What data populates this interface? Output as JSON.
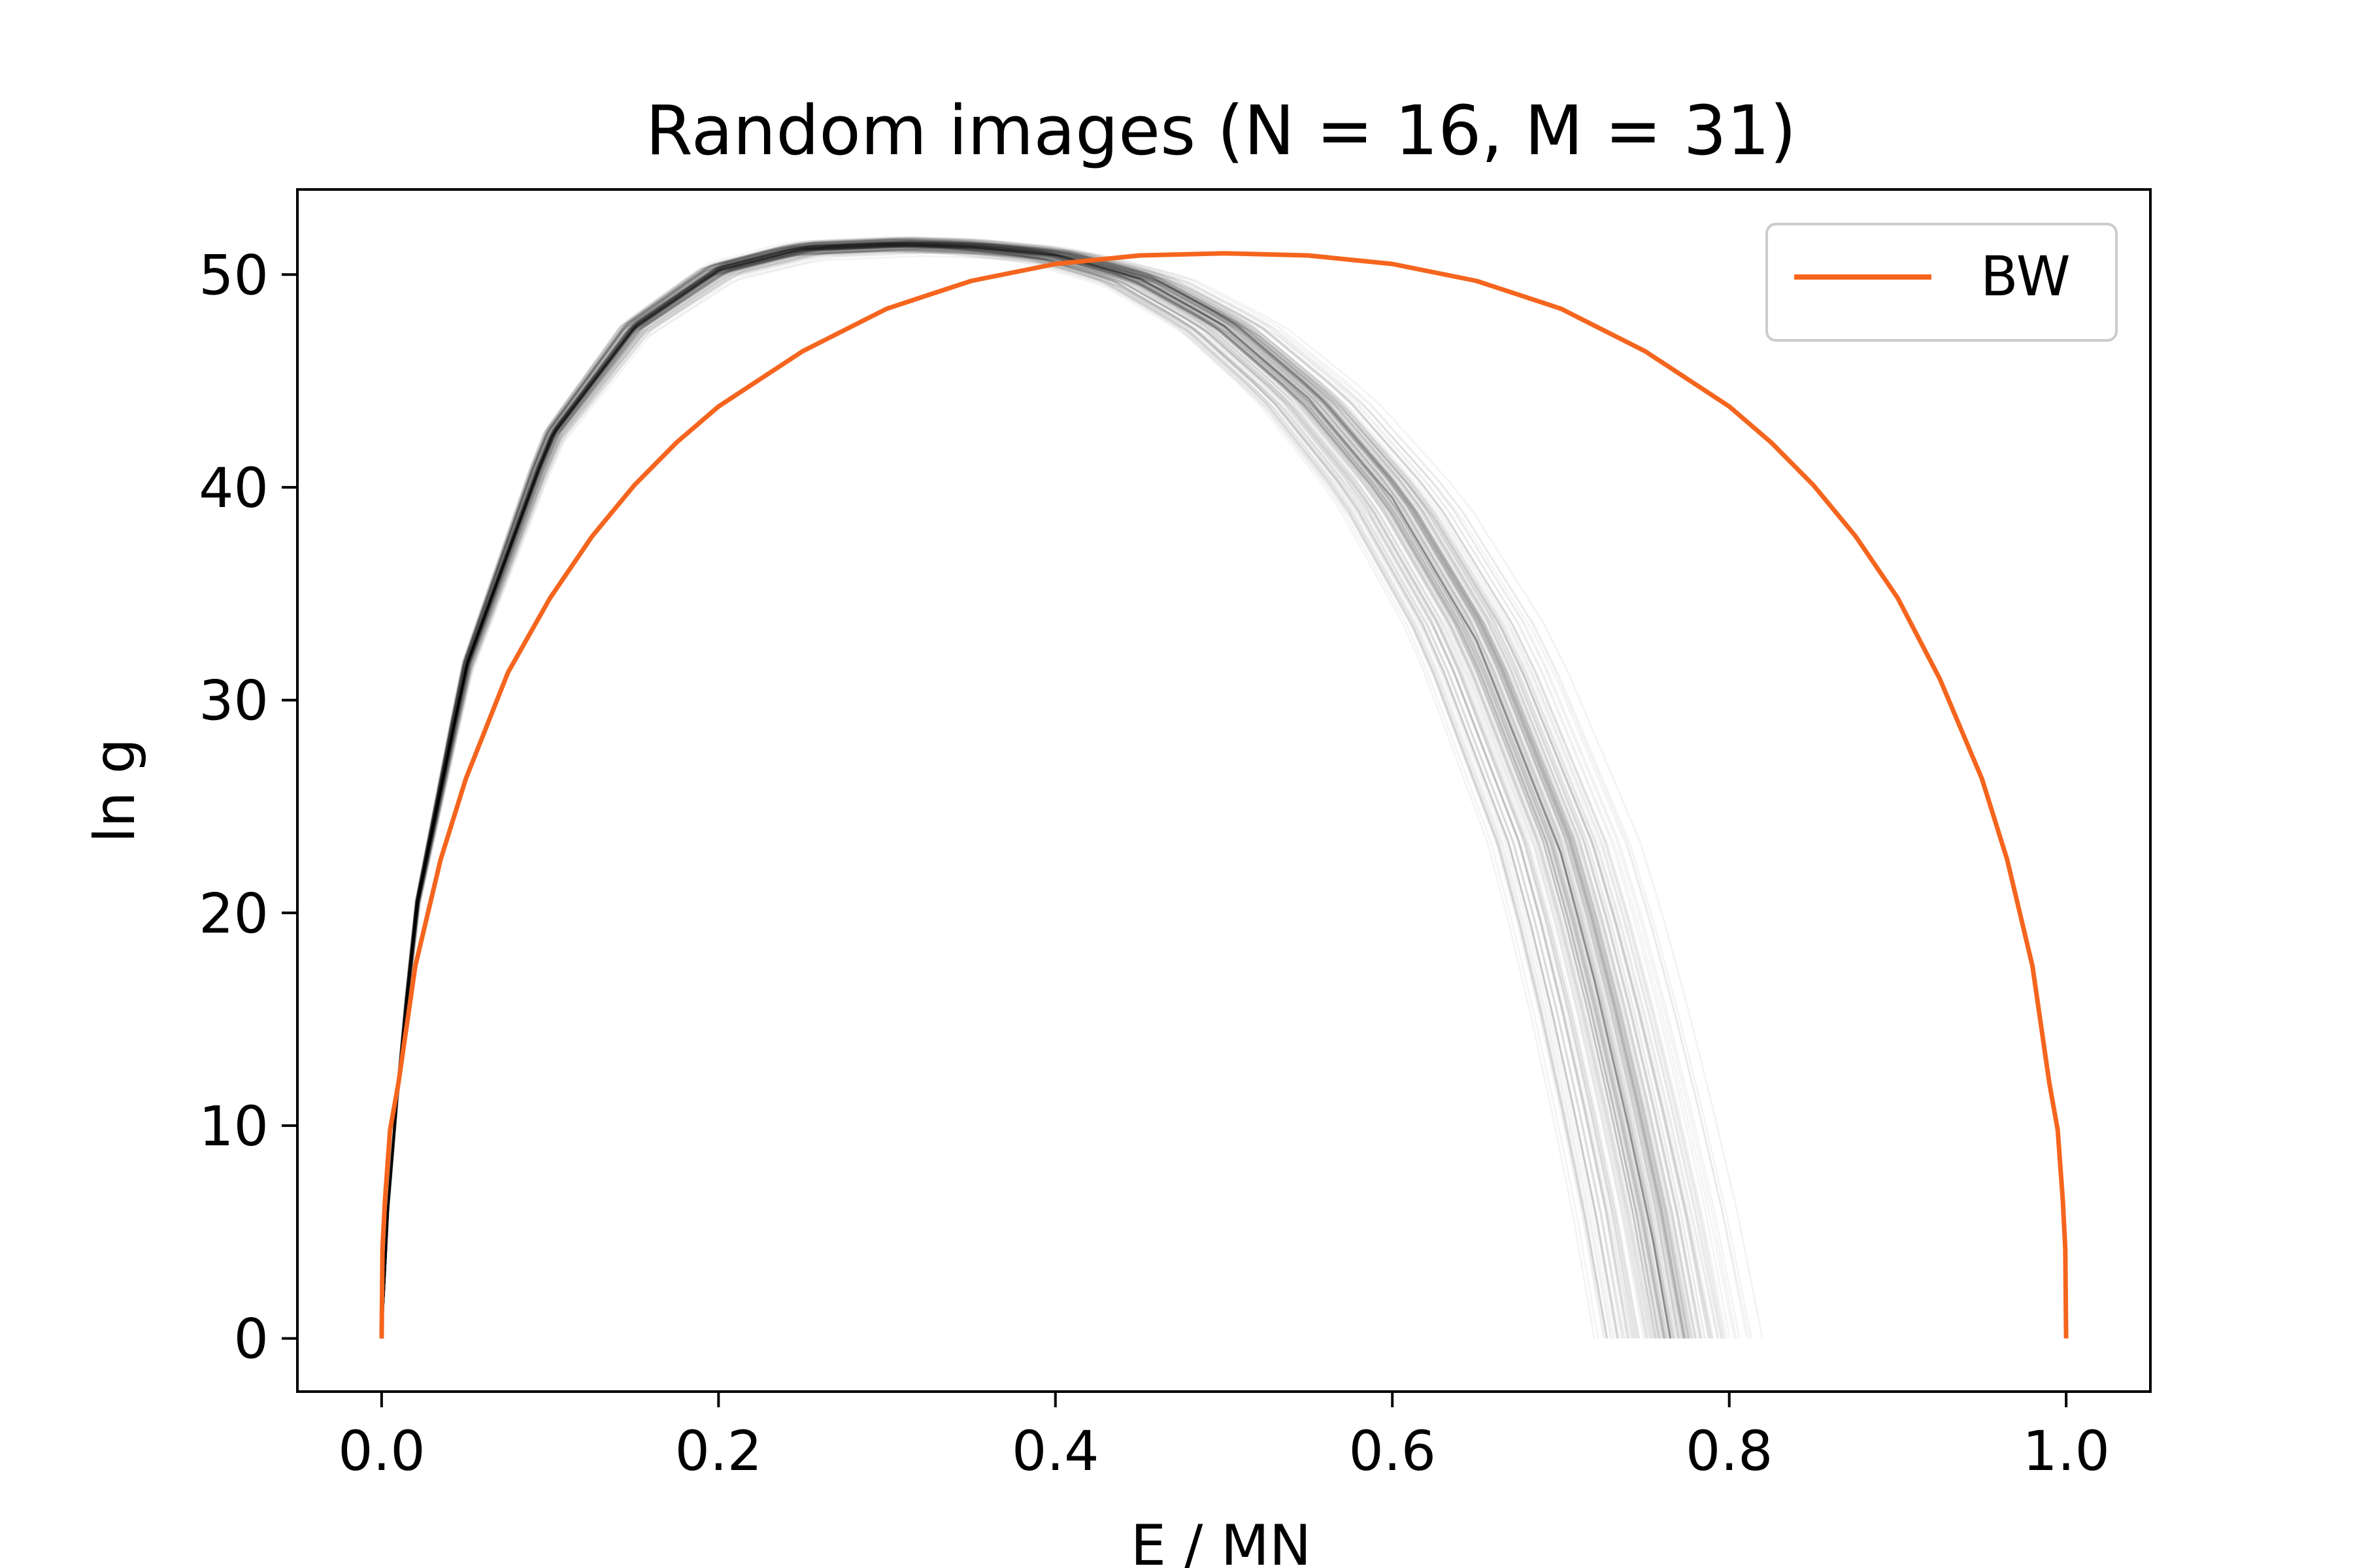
{
  "chart_data": {
    "type": "line",
    "title": "Random images (N = 16, M = 31)",
    "xlabel": "E / MN",
    "ylabel": "ln g",
    "xlim": [
      -0.05,
      1.05
    ],
    "ylim": [
      -2.5,
      54
    ],
    "xticks": [
      0.0,
      0.2,
      0.4,
      0.6,
      0.8,
      1.0
    ],
    "xtick_labels": [
      "0.0",
      "0.2",
      "0.4",
      "0.6",
      "0.8",
      "1.0"
    ],
    "yticks": [
      0,
      10,
      20,
      30,
      40,
      50
    ],
    "ytick_labels": [
      "0",
      "10",
      "20",
      "30",
      "40",
      "50"
    ],
    "grid": false,
    "legend": {
      "position": "top-right",
      "entries": [
        {
          "label": "BW",
          "color": "#f5651e"
        }
      ]
    },
    "series": [
      {
        "name": "BW",
        "color": "#f5651e",
        "x": [
          0.0,
          0.0005,
          0.002,
          0.005,
          0.01,
          0.02,
          0.035,
          0.05,
          0.075,
          0.1,
          0.125,
          0.15,
          0.175,
          0.2,
          0.25,
          0.3,
          0.35,
          0.4,
          0.45,
          0.5,
          0.55,
          0.6,
          0.65,
          0.7,
          0.75,
          0.8,
          0.825,
          0.85,
          0.875,
          0.9,
          0.925,
          0.95,
          0.965,
          0.98,
          0.99,
          0.995,
          0.998,
          0.9995,
          1.0
        ],
        "y": [
          0,
          4.2,
          6.5,
          9.8,
          12.0,
          17.5,
          22.5,
          26.3,
          31.3,
          34.8,
          37.7,
          40.1,
          42.1,
          43.8,
          46.4,
          48.4,
          49.7,
          50.5,
          50.9,
          51.0,
          50.9,
          50.5,
          49.7,
          48.4,
          46.4,
          43.8,
          42.1,
          40.1,
          37.7,
          34.8,
          31.0,
          26.3,
          22.5,
          17.5,
          12.0,
          9.8,
          6.5,
          4.2,
          0
        ]
      },
      {
        "name": "",
        "color": "#000000",
        "x": [
          0.0,
          0.005,
          0.02,
          0.05,
          0.1,
          0.15,
          0.2,
          0.25,
          0.31,
          0.35,
          0.4,
          0.45,
          0.5,
          0.55,
          0.6,
          0.65,
          0.7,
          0.72,
          0.74,
          0.755,
          0.765
        ],
        "y": [
          0,
          8.0,
          20.0,
          31.5,
          42.3,
          47.5,
          50.2,
          51.2,
          51.4,
          51.3,
          50.9,
          49.8,
          47.6,
          44.2,
          39.5,
          32.8,
          22.8,
          16.8,
          10.0,
          4.5,
          0
        ]
      }
    ]
  }
}
